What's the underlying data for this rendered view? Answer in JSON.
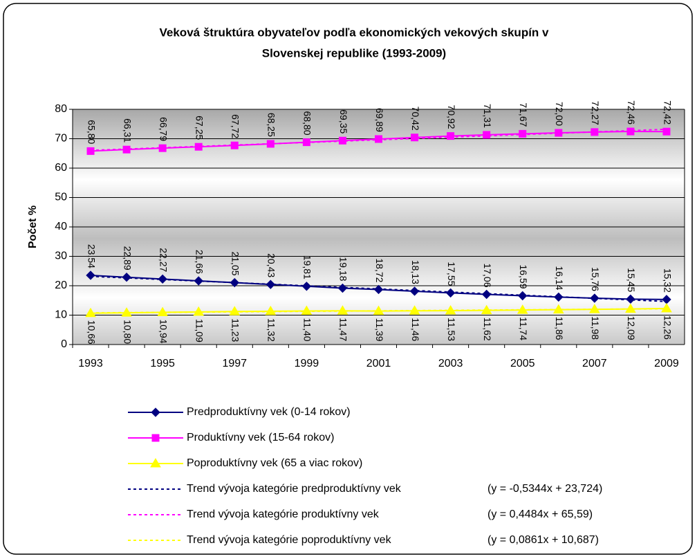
{
  "chart_data": {
    "type": "line",
    "title": [
      "Veková štruktúra obyvateľov podľa ekonomických vekových skupín v",
      "Slovenskej republike (1993-2009)"
    ],
    "y_label": "Počet %",
    "categories": [
      "1993",
      null,
      "1995",
      null,
      "1997",
      null,
      "1999",
      null,
      "2001",
      null,
      "2003",
      null,
      "2005",
      null,
      "2007",
      null,
      "2009"
    ],
    "ylim": [
      0,
      80
    ],
    "yticks": [
      0,
      10,
      20,
      30,
      40,
      50,
      60,
      70,
      80
    ],
    "grid": true,
    "series": [
      {
        "name": "Predproduktívny vek (0-14 rokov)",
        "color": "#000080",
        "marker": "diamond",
        "values": [
          23.54,
          22.89,
          22.27,
          21.66,
          21.05,
          20.43,
          19.81,
          19.18,
          18.72,
          18.13,
          17.55,
          17.06,
          16.59,
          16.14,
          15.76,
          15.45,
          15.32
        ],
        "value_labels": [
          "23,54",
          "22,89",
          "22,27",
          "21,66",
          "21,05",
          "20,43",
          "19,81",
          "19,18",
          "18,72",
          "18,13",
          "17,55",
          "17,06",
          "16,59",
          "16,14",
          "15,76",
          "15,45",
          "15,32"
        ],
        "label_position": "above"
      },
      {
        "name": "Produktívny vek (15-64 rokov)",
        "color": "#ff00ff",
        "marker": "square",
        "values": [
          65.8,
          66.31,
          66.79,
          67.25,
          67.72,
          68.25,
          68.8,
          69.35,
          69.89,
          70.42,
          70.92,
          71.31,
          71.67,
          72.0,
          72.27,
          72.46,
          72.42
        ],
        "value_labels": [
          "65,80",
          "66,31",
          "66,79",
          "67,25",
          "67,72",
          "68,25",
          "68,80",
          "69,35",
          "69,89",
          "70,42",
          "70,92",
          "71,31",
          "71,67",
          "72,00",
          "72,27",
          "72,46",
          "72,42"
        ],
        "label_position": "above"
      },
      {
        "name": "Poproduktívny vek (65 a viac rokov)",
        "color": "#ffff00",
        "marker": "triangle",
        "values": [
          10.66,
          10.8,
          10.94,
          11.09,
          11.23,
          11.32,
          11.4,
          11.47,
          11.39,
          11.46,
          11.53,
          11.62,
          11.74,
          11.86,
          11.98,
          12.09,
          12.26
        ],
        "value_labels": [
          "10,66",
          "10,80",
          "10,94",
          "11,09",
          "11,23",
          "11,32",
          "11,40",
          "11,47",
          "11,39",
          "11,46",
          "11,53",
          "11,62",
          "11,74",
          "11,86",
          "11,98",
          "12,09",
          "12,26"
        ],
        "label_position": "below"
      }
    ],
    "trends": [
      {
        "name": "Trend vývoja kategórie predproduktívny vek",
        "equation": "(y = -0,5344x + 23,724)",
        "slope": -0.5344,
        "intercept": 23.724,
        "color": "#000080"
      },
      {
        "name": "Trend vývoja kategórie produktívny vek",
        "equation": "(y = 0,4484x + 65,59)",
        "slope": 0.4484,
        "intercept": 65.59,
        "color": "#ff00ff"
      },
      {
        "name": "Trend vývoja kategórie poproduktívny vek",
        "equation": "(y = 0,0861x + 10,687)",
        "slope": 0.0861,
        "intercept": 10.687,
        "color": "#ffff00"
      }
    ]
  }
}
